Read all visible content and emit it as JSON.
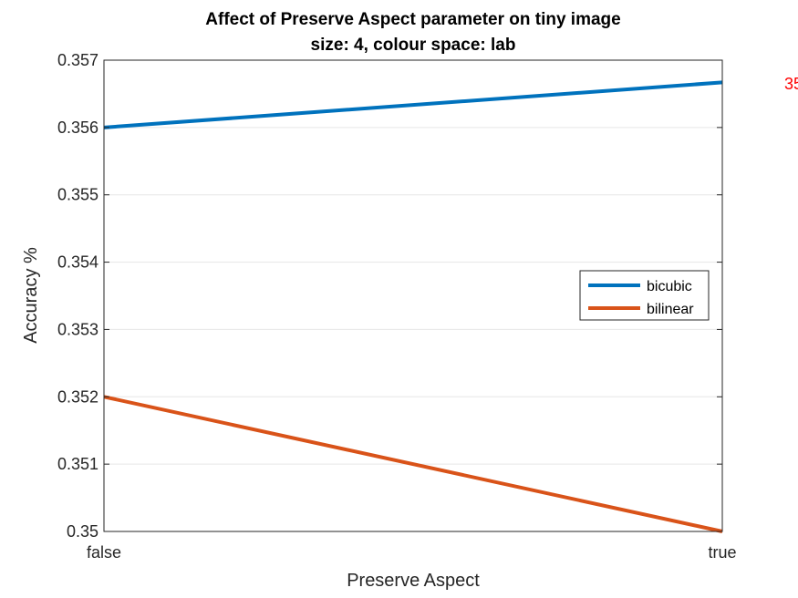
{
  "chart_data": {
    "type": "line",
    "title": [
      "Affect of Preserve Aspect parameter on tiny image",
      "size: 4, colour space: lab"
    ],
    "xlabel": "Preserve Aspect",
    "ylabel": "Accuracy %",
    "categories": [
      "false",
      "true"
    ],
    "ylim": [
      0.35,
      0.357
    ],
    "yticks": [
      0.35,
      0.351,
      0.352,
      0.353,
      0.354,
      0.355,
      0.356,
      0.357
    ],
    "ytick_labels": [
      "0.35",
      "0.351",
      "0.352",
      "0.353",
      "0.354",
      "0.355",
      "0.356",
      "0.357"
    ],
    "grid": true,
    "legend_position": "right",
    "series": [
      {
        "name": "bicubic",
        "values": [
          0.356,
          0.35667
        ],
        "color": "#0072BD"
      },
      {
        "name": "bilinear",
        "values": [
          0.352,
          0.35
        ],
        "color": "#D95319"
      }
    ],
    "annotations": [
      {
        "text": "35",
        "color": "#ff0000"
      }
    ]
  }
}
